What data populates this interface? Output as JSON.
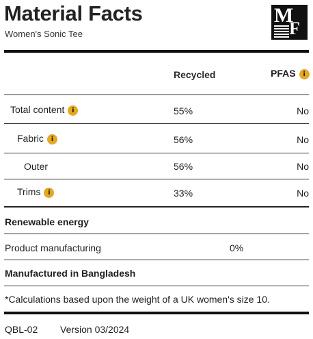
{
  "header": {
    "title": "Material Facts",
    "subtitle": "Women's Sonic Tee",
    "logo_top": "M",
    "logo_bottom": "F"
  },
  "columns": {
    "recycled": "Recycled",
    "pfas": "PFAS"
  },
  "rows": [
    {
      "label": "Total content",
      "recycled": "55%",
      "pfas": "No",
      "info": true
    },
    {
      "label": "Fabric",
      "recycled": "56%",
      "pfas": "No",
      "info": true
    },
    {
      "label": "Outer",
      "recycled": "56%",
      "pfas": "No",
      "info": false
    },
    {
      "label": "Trims",
      "recycled": "33%",
      "pfas": "No",
      "info": true
    }
  ],
  "renewable": {
    "heading": "Renewable energy",
    "item_label": "Product manufacturing",
    "item_value": "0%"
  },
  "origin": "Manufactured in Bangladesh",
  "note": "*Calculations based upon the weight of a UK women's size 10.",
  "footer": {
    "code": "QBL-02",
    "version": "Version 03/2024"
  },
  "colors": {
    "info_badge": "#e5a823",
    "rule": "#111111"
  },
  "icons": {
    "info": "i"
  }
}
